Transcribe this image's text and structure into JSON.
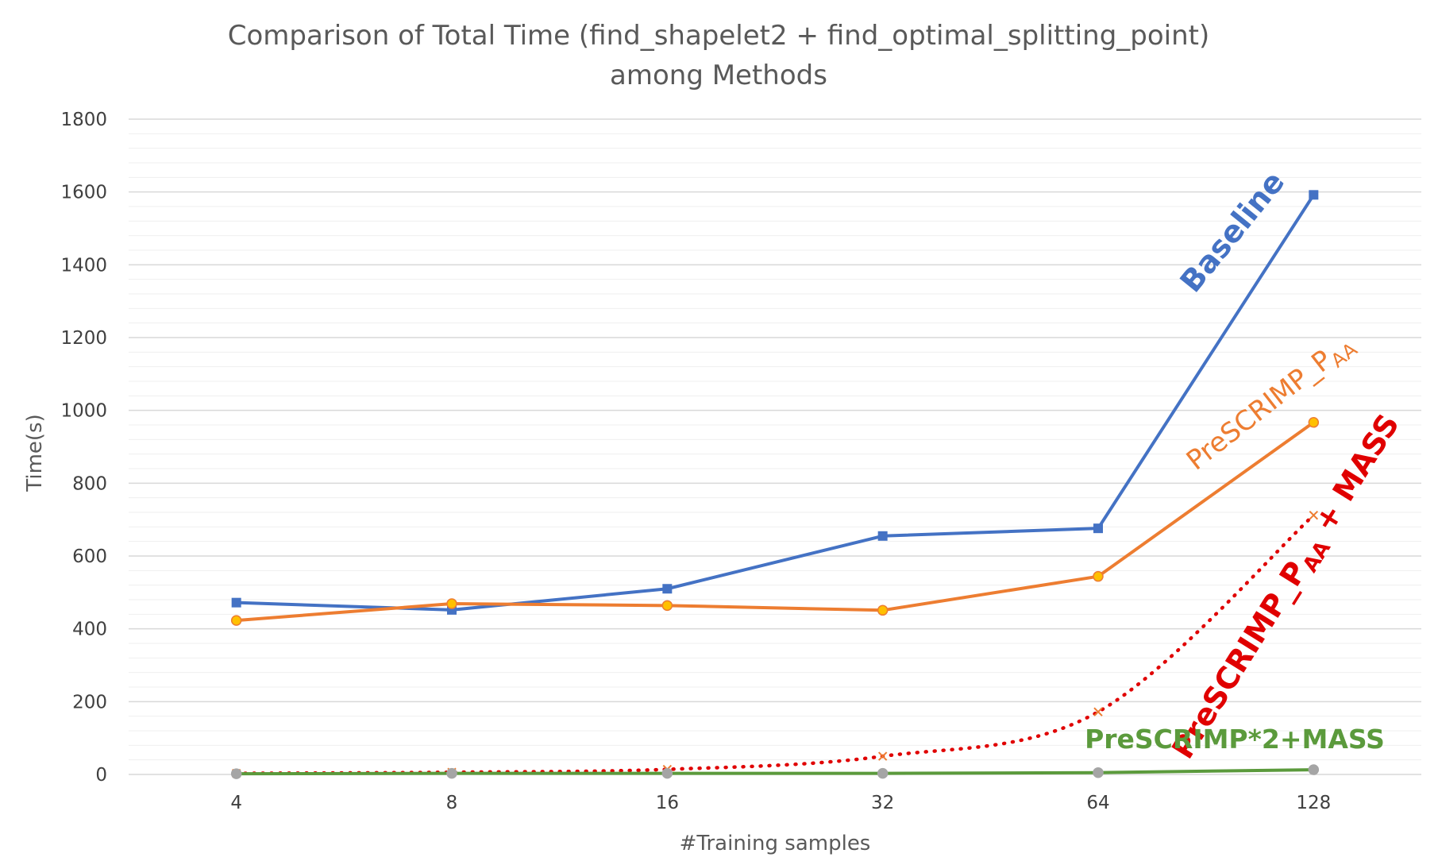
{
  "chart_data": {
    "type": "line",
    "title_line1": "Comparison of Total Time (find_shapelet2 + find_optimal_splitting_point)",
    "title_line2": "among Methods",
    "xlabel": "#Training samples",
    "ylabel": "Time(s)",
    "categories": [
      "4",
      "8",
      "16",
      "32",
      "64",
      "128"
    ],
    "ylim": [
      0,
      1800
    ],
    "yticks": [
      "0",
      "200",
      "400",
      "600",
      "800",
      "1000",
      "1200",
      "1400",
      "1600",
      "1800"
    ],
    "grid": true,
    "series": [
      {
        "name": "Baseline",
        "color": "#4472C4",
        "values": [
          472,
          452,
          510,
          655,
          676,
          1592
        ],
        "style": "solid",
        "marker": "square"
      },
      {
        "name": "PreSCRIMP_PAA",
        "color": "#ED7D31",
        "values": [
          423,
          469,
          464,
          451,
          544,
          967
        ],
        "style": "solid",
        "marker": "circle"
      },
      {
        "name": "PreSCRIMP_PAA + MASS",
        "color": "#E00000",
        "values": [
          3,
          6,
          14,
          50,
          172,
          712
        ],
        "style": "dotted",
        "marker": "cross"
      },
      {
        "name": "PreSCRIMP*2+MASS",
        "color": "#5B9A3C",
        "values": [
          2,
          3,
          3,
          3,
          5,
          13
        ],
        "style": "solid",
        "marker": "circle"
      }
    ],
    "annotations": {
      "baseline": {
        "text": "Baseline",
        "color": "#4472C4"
      },
      "paa": {
        "main": "PreSCRIMP_P",
        "sub": "AA",
        "color": "#ED7D31"
      },
      "paa_mass": {
        "main": "PreSCRIMP_P",
        "sub": "AA",
        "tail": " + MASS",
        "color": "#E00000"
      },
      "prescrimp2": {
        "text": "PreSCRIMP*2+MASS",
        "color": "#5B9A3C"
      }
    }
  }
}
